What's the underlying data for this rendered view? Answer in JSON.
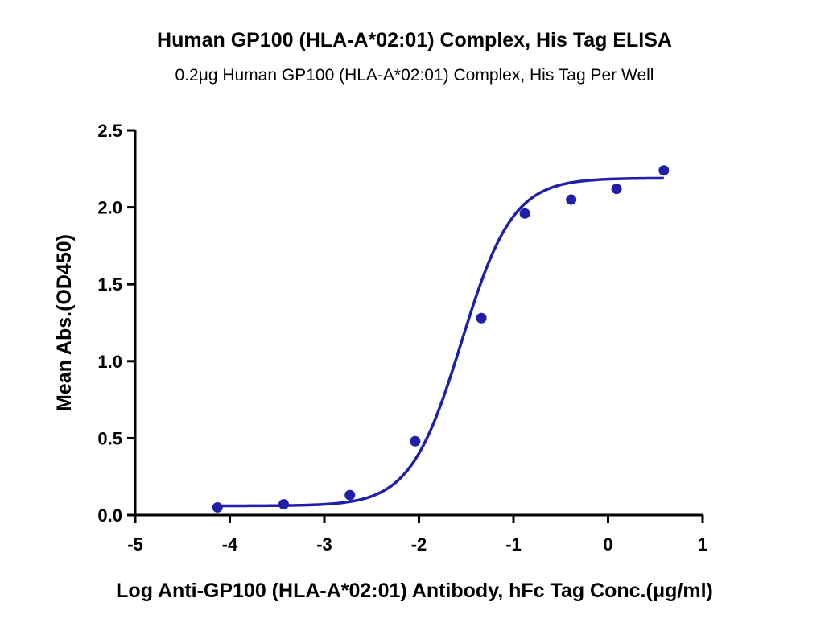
{
  "chart_data": {
    "type": "scatter",
    "title": "Human GP100 (HLA-A*02:01) Complex, His Tag ELISA",
    "subtitle": "0.2μg Human GP100 (HLA-A*02:01) Complex, His Tag Per Well",
    "xlabel": "Log Anti-GP100 (HLA-A*02:01) Antibody, hFc Tag Conc.(μg/ml)",
    "ylabel": "Mean Abs.(OD450)",
    "xlim": [
      -5,
      1
    ],
    "ylim": [
      0,
      2.5
    ],
    "x_ticks": [
      -5,
      -4,
      -3,
      -2,
      -1,
      0,
      1
    ],
    "x_tick_labels": [
      "-5",
      "-4",
      "-3",
      "-2",
      "-1",
      "0",
      "1"
    ],
    "y_ticks": [
      0.0,
      0.5,
      1.0,
      1.5,
      2.0,
      2.5
    ],
    "y_tick_labels": [
      "0.0",
      "0.5",
      "1.0",
      "1.5",
      "2.0",
      "2.5"
    ],
    "grid": false,
    "legend": "none",
    "color": "#1f1fa8",
    "series": [
      {
        "x": [
          -4.13,
          -3.43,
          -2.73,
          -2.04,
          -1.34,
          -0.88,
          -0.39,
          0.09,
          0.59
        ],
        "y": [
          0.05,
          0.07,
          0.13,
          0.48,
          1.28,
          1.96,
          2.05,
          2.12,
          2.24
        ]
      }
    ],
    "fit_curve": {
      "type": "4PL",
      "x_range": [
        -4.13,
        0.59
      ],
      "bottom": 0.06,
      "top": 2.19,
      "log_ec50": -1.55,
      "hill_slope": 1.6
    }
  }
}
